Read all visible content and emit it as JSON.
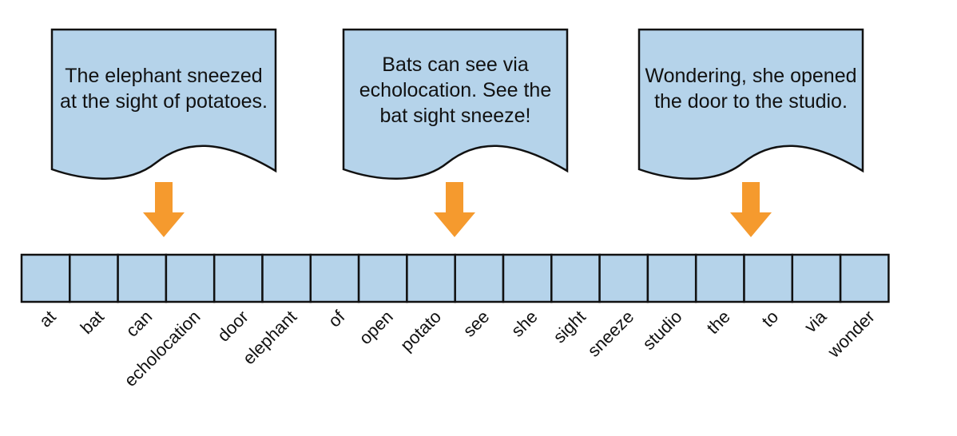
{
  "colors": {
    "fill": "#b5d3ea",
    "stroke": "#111111",
    "arrow": "#f59a2e",
    "text": "#111111"
  },
  "documents": [
    {
      "lines": [
        "The elephant sneezed",
        "at the sight of potatoes."
      ]
    },
    {
      "lines": [
        "Bats can see via",
        "echolocation. See the",
        "bat sight sneeze!"
      ]
    },
    {
      "lines": [
        "Wondering, she opened",
        "the door to the studio."
      ]
    }
  ],
  "vocabulary": [
    "at",
    "bat",
    "can",
    "echolocation",
    "door",
    "elephant",
    "of",
    "open",
    "potato",
    "see",
    "she",
    "sight",
    "sneeze",
    "studio",
    "the",
    "to",
    "via",
    "wonder"
  ]
}
